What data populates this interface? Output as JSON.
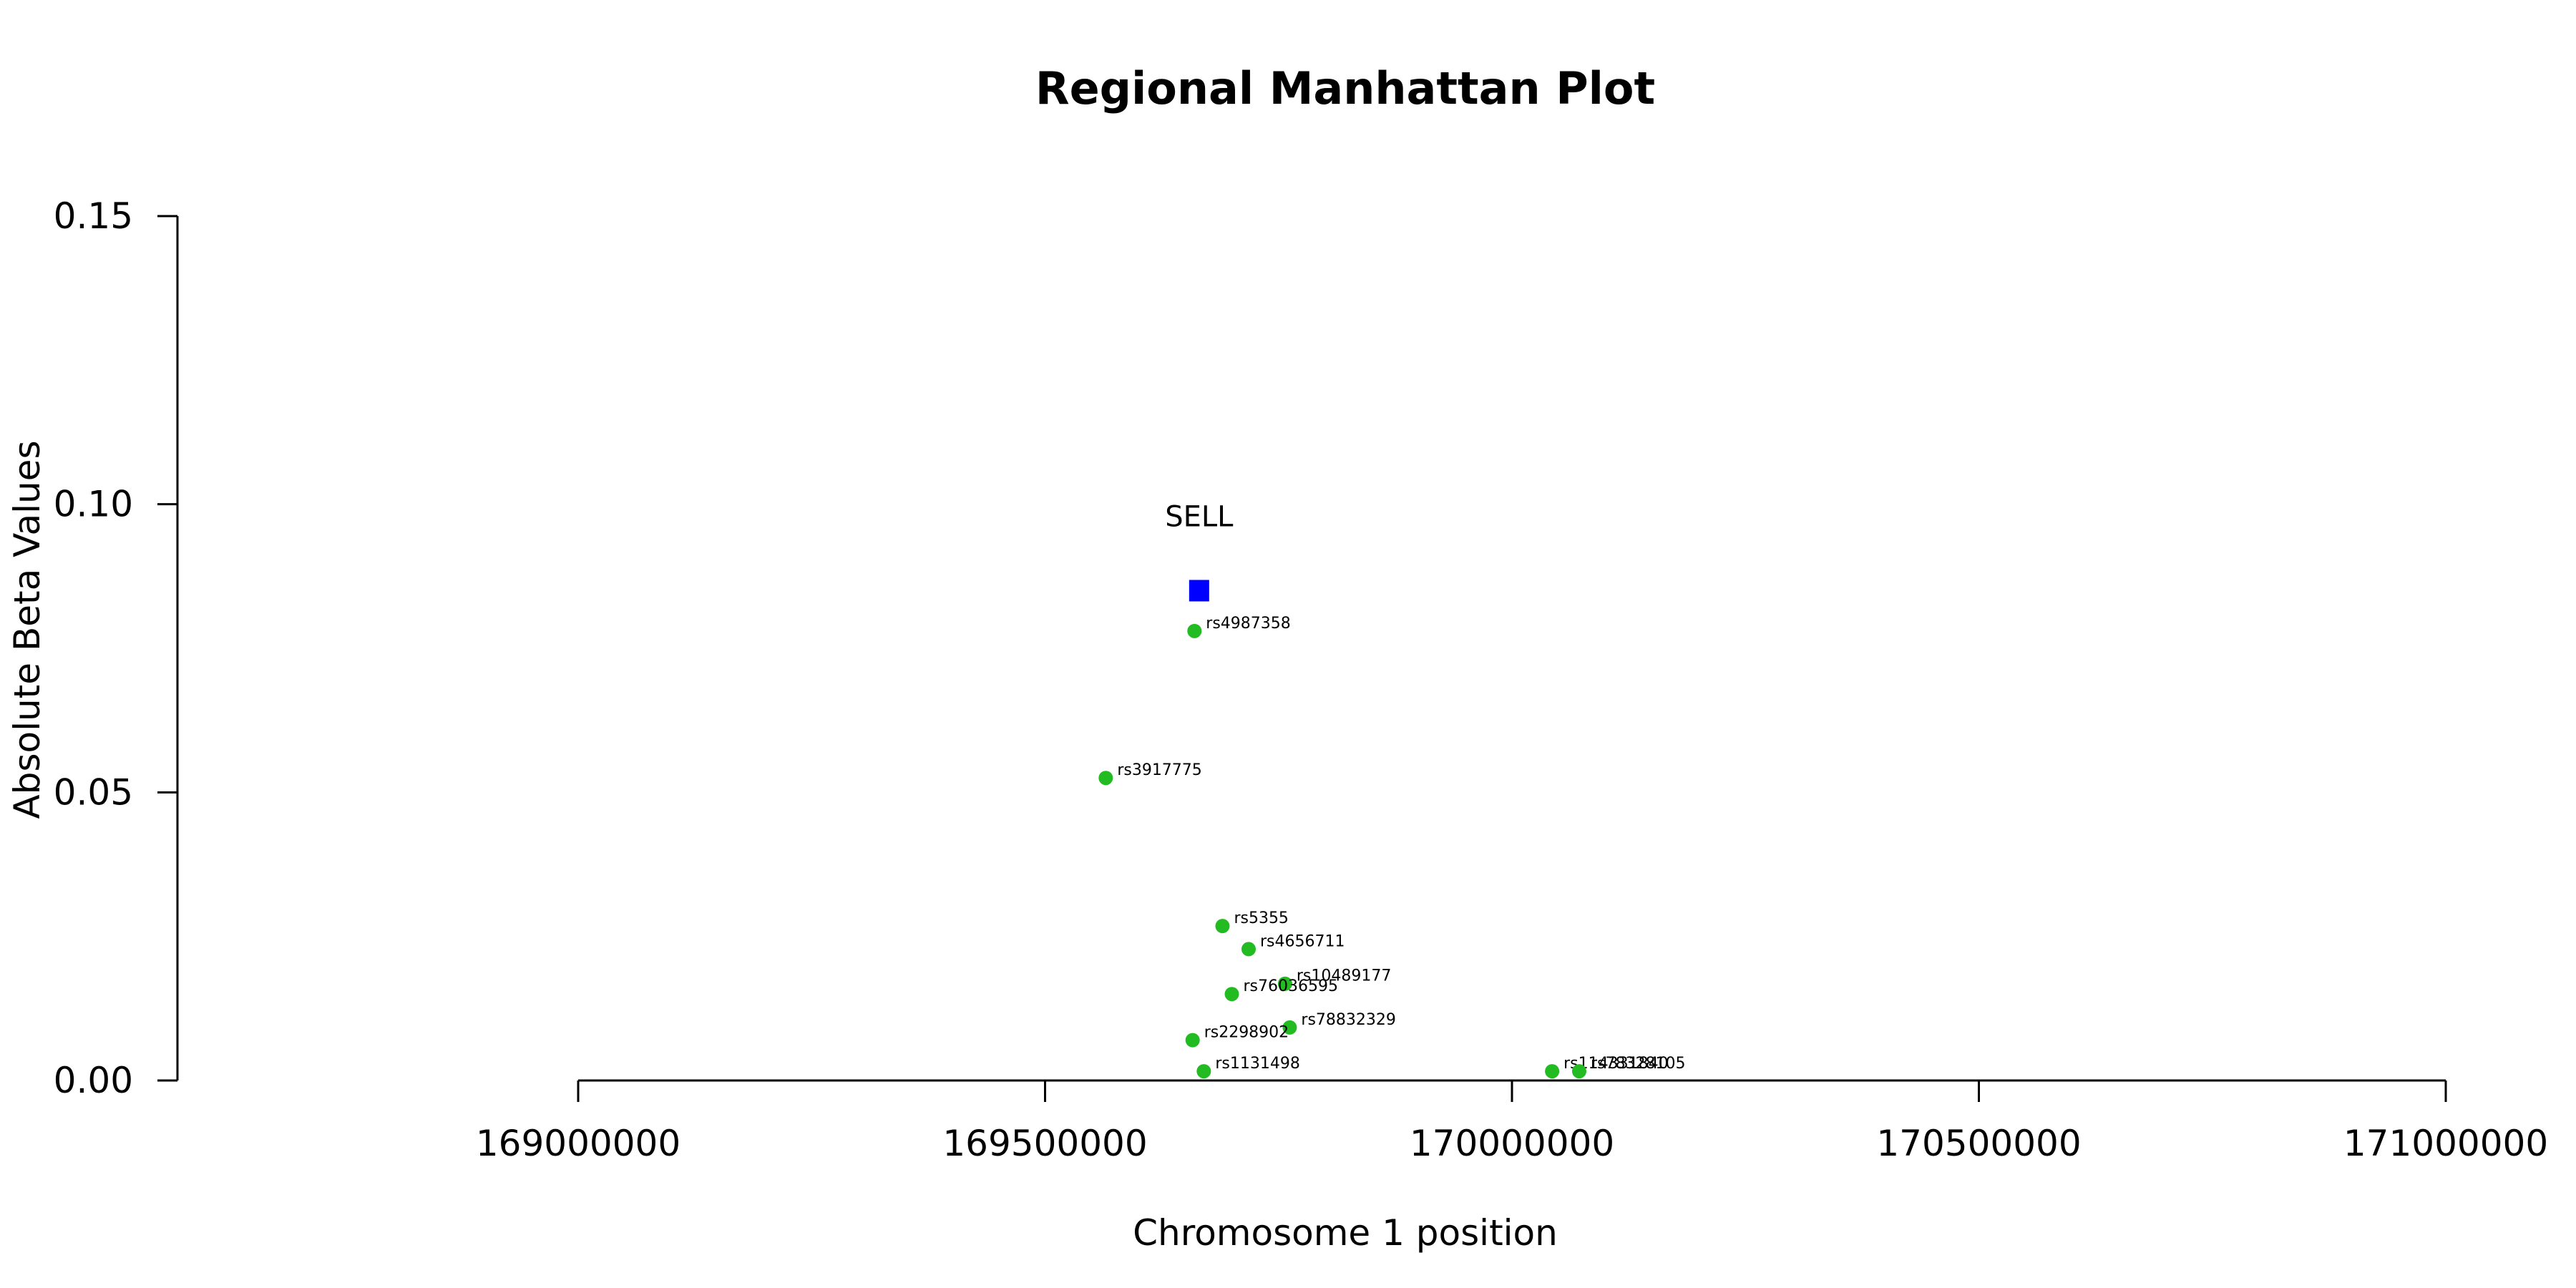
{
  "chart_data": {
    "type": "scatter",
    "title": "Regional Manhattan Plot",
    "xlabel": "Chromosome 1 position",
    "ylabel": "Absolute Beta Values",
    "xlim": [
      168500000,
      171000000
    ],
    "ylim": [
      0,
      0.15
    ],
    "xticks": [
      169000000,
      169500000,
      170000000,
      170500000,
      171000000
    ],
    "xtick_labels": [
      "169000000",
      "169500000",
      "170000000",
      "170500000",
      "171000000"
    ],
    "yticks": [
      0,
      0.05,
      0.1,
      0.15
    ],
    "ytick_labels": [
      "0.00",
      "0.05",
      "0.10",
      "0.15"
    ],
    "grid": false,
    "gene": {
      "name": "SELL",
      "x": 169665000,
      "y": 0.085,
      "color": "#0000ff",
      "shape": "square"
    },
    "point_color": "#22bb22",
    "points": [
      {
        "label": "rs4987358",
        "x": 169660000,
        "y": 0.078
      },
      {
        "label": "rs3917775",
        "x": 169565000,
        "y": 0.0525
      },
      {
        "label": "rs5355",
        "x": 169690000,
        "y": 0.0268
      },
      {
        "label": "rs4656711",
        "x": 169718000,
        "y": 0.0228
      },
      {
        "label": "rs10489177",
        "x": 169757000,
        "y": 0.0168
      },
      {
        "label": "rs76036595",
        "x": 169700000,
        "y": 0.015
      },
      {
        "label": "rs78832329",
        "x": 169762000,
        "y": 0.0092
      },
      {
        "label": "rs2298902",
        "x": 169658000,
        "y": 0.007
      },
      {
        "label": "rs1131498",
        "x": 169670000,
        "y": 0.0016
      },
      {
        "label": "rs114331840",
        "x": 170043000,
        "y": 0.0016
      },
      {
        "label": "rs78328105",
        "x": 170072000,
        "y": 0.0016
      }
    ]
  }
}
